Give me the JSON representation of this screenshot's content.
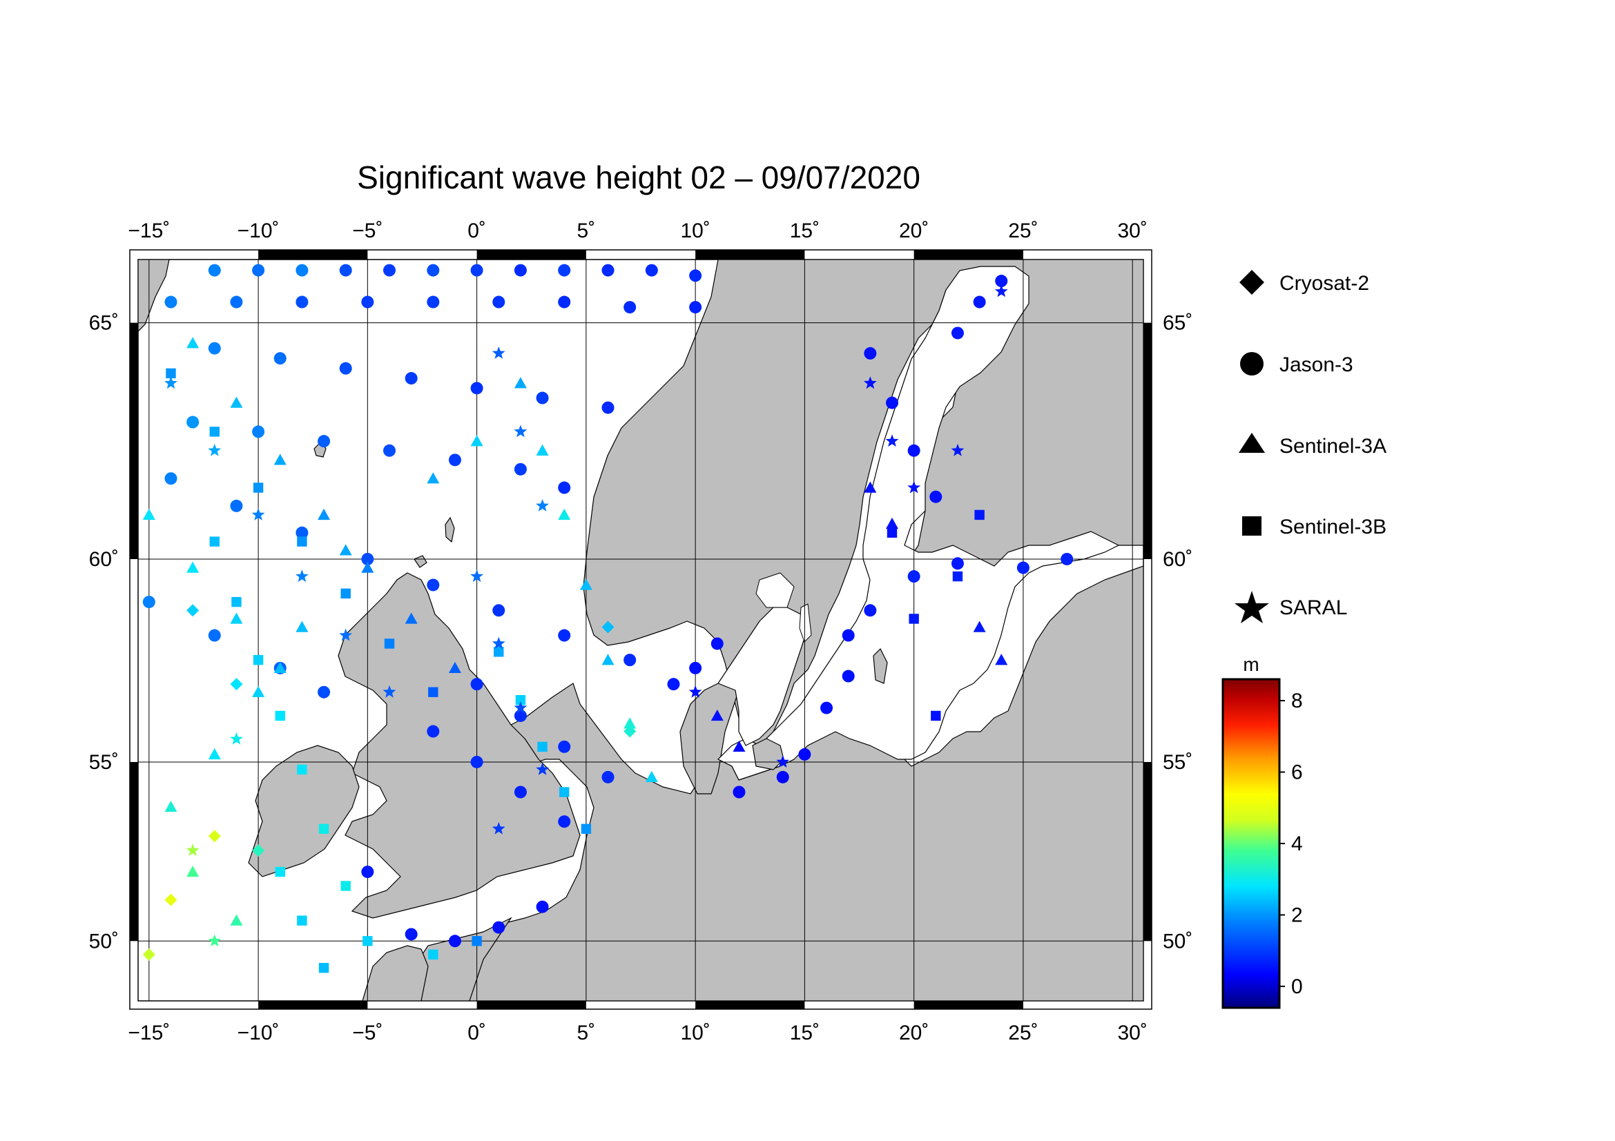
{
  "title": "Significant wave height 02 – 09/07/2020",
  "map": {
    "lon_range": [
      -15.5,
      30.5
    ],
    "lat_range": [
      48.2,
      66.2
    ],
    "lon_ticks": [
      -15,
      -10,
      -5,
      0,
      5,
      10,
      15,
      20,
      25,
      30
    ],
    "lon_tick_labels": [
      "−15˚",
      "−10˚",
      "−5˚",
      "0˚",
      "5˚",
      "10˚",
      "15˚",
      "20˚",
      "25˚",
      "30˚"
    ],
    "lat_ticks": [
      50,
      55,
      60,
      65
    ],
    "lat_tick_labels": [
      "50˚",
      "55˚",
      "60˚",
      "65˚"
    ],
    "land_color": "#bebebe",
    "sea_color": "#ffffff"
  },
  "legend": {
    "items": [
      {
        "label": "Cryosat-2",
        "marker": "diamond-icon"
      },
      {
        "label": "Jason-3",
        "marker": "circle-icon"
      },
      {
        "label": "Sentinel-3A",
        "marker": "triangle-icon"
      },
      {
        "label": "Sentinel-3B",
        "marker": "square-icon"
      },
      {
        "label": "SARAL",
        "marker": "star-icon"
      }
    ]
  },
  "colorbar": {
    "unit": "m",
    "min": -0.6,
    "max": 8.6,
    "ticks": [
      0,
      2,
      4,
      6,
      8
    ],
    "tick_labels": [
      "0",
      "2",
      "4",
      "6",
      "8"
    ],
    "colors": [
      "#00007a",
      "#0000ff",
      "#0080ff",
      "#00e5ff",
      "#40ff90",
      "#d0ff20",
      "#ffff00",
      "#ff9a00",
      "#ff2000",
      "#c00000",
      "#800000"
    ]
  },
  "chart_data": {
    "type": "scatter",
    "description_value": "significant wave height along satellite ground tracks (m)",
    "series": [
      {
        "name": "Jason-3",
        "marker": "circle",
        "points": [
          [
            -12,
            66.0,
            1.8
          ],
          [
            -10,
            66.0,
            1.6
          ],
          [
            -8,
            66.0,
            1.8
          ],
          [
            -6,
            66.0,
            1.2
          ],
          [
            -4,
            66.0,
            1.0
          ],
          [
            -2,
            66.0,
            1.2
          ],
          [
            0,
            66.0,
            1.0
          ],
          [
            2,
            66.0,
            0.8
          ],
          [
            4,
            66.0,
            1.0
          ],
          [
            6,
            66.0,
            0.8
          ],
          [
            8,
            66.0,
            0.8
          ],
          [
            10,
            65.9,
            0.8
          ],
          [
            -14,
            65.4,
            1.8
          ],
          [
            -11,
            65.4,
            1.6
          ],
          [
            -8,
            65.4,
            1.2
          ],
          [
            -5,
            65.4,
            1.0
          ],
          [
            -2,
            65.4,
            1.0
          ],
          [
            1,
            65.4,
            0.9
          ],
          [
            4,
            65.4,
            0.8
          ],
          [
            7,
            65.3,
            0.8
          ],
          [
            10,
            65.3,
            0.7
          ],
          [
            -12,
            64.5,
            1.8
          ],
          [
            -9,
            64.3,
            1.6
          ],
          [
            -6,
            64.1,
            1.2
          ],
          [
            -3,
            63.9,
            1.0
          ],
          [
            0,
            63.7,
            0.9
          ],
          [
            3,
            63.5,
            1.0
          ],
          [
            6,
            63.3,
            0.8
          ],
          [
            -13,
            63.0,
            2.0
          ],
          [
            -10,
            62.8,
            1.8
          ],
          [
            -7,
            62.6,
            1.4
          ],
          [
            -4,
            62.4,
            1.2
          ],
          [
            -1,
            62.2,
            1.0
          ],
          [
            2,
            62.0,
            1.0
          ],
          [
            4,
            61.6,
            0.8
          ],
          [
            -14,
            61.8,
            1.8
          ],
          [
            -11,
            61.2,
            1.6
          ],
          [
            -8,
            60.6,
            1.4
          ],
          [
            -5,
            60.0,
            1.2
          ],
          [
            -2,
            59.4,
            1.0
          ],
          [
            1,
            58.8,
            0.9
          ],
          [
            4,
            58.2,
            0.8
          ],
          [
            7,
            57.6,
            0.8
          ],
          [
            9,
            57.0,
            0.6
          ],
          [
            -15,
            59.0,
            1.8
          ],
          [
            -12,
            58.2,
            1.6
          ],
          [
            -9,
            57.4,
            1.4
          ],
          [
            -7,
            56.8,
            1.2
          ],
          [
            0,
            57.0,
            0.8
          ],
          [
            2,
            56.2,
            0.8
          ],
          [
            4,
            55.4,
            0.8
          ],
          [
            6,
            54.6,
            0.8
          ],
          [
            -2,
            55.8,
            0.8
          ],
          [
            0,
            55.0,
            0.8
          ],
          [
            2,
            54.2,
            0.7
          ],
          [
            4,
            53.4,
            0.7
          ],
          [
            18,
            64.4,
            0.5
          ],
          [
            19,
            63.4,
            0.5
          ],
          [
            20,
            62.4,
            0.5
          ],
          [
            21,
            61.4,
            0.5
          ],
          [
            22,
            64.8,
            0.6
          ],
          [
            23,
            65.4,
            0.6
          ],
          [
            24,
            65.8,
            0.6
          ],
          [
            17,
            58.2,
            0.5
          ],
          [
            18,
            58.8,
            0.6
          ],
          [
            20,
            59.6,
            0.7
          ],
          [
            22,
            59.9,
            0.6
          ],
          [
            25,
            59.8,
            0.7
          ],
          [
            27,
            60.0,
            0.7
          ],
          [
            16,
            56.4,
            0.5
          ],
          [
            17,
            57.2,
            0.5
          ],
          [
            15,
            55.2,
            0.4
          ],
          [
            14,
            54.6,
            0.4
          ],
          [
            12,
            54.2,
            0.4
          ],
          [
            10,
            57.4,
            0.5
          ],
          [
            11,
            58.0,
            0.5
          ],
          [
            -3,
            50.2,
            0.6
          ],
          [
            -1,
            50.0,
            0.5
          ],
          [
            1,
            50.4,
            0.5
          ],
          [
            3,
            51.0,
            0.5
          ],
          [
            -5,
            52.0,
            0.6
          ]
        ]
      },
      {
        "name": "Sentinel-3A",
        "marker": "triangle",
        "points": [
          [
            -13,
            64.6,
            2.6
          ],
          [
            -11,
            63.4,
            2.4
          ],
          [
            -9,
            62.2,
            2.2
          ],
          [
            -7,
            61.0,
            2.0
          ],
          [
            -5,
            59.8,
            1.8
          ],
          [
            -3,
            58.6,
            1.6
          ],
          [
            -1,
            57.4,
            1.4
          ],
          [
            -15,
            61.0,
            2.8
          ],
          [
            -13,
            59.8,
            2.8
          ],
          [
            -11,
            58.6,
            2.6
          ],
          [
            -9,
            57.4,
            2.4
          ],
          [
            -12,
            55.2,
            2.8
          ],
          [
            -14,
            53.8,
            3.2
          ],
          [
            -13,
            52.0,
            3.8
          ],
          [
            -11,
            50.6,
            3.6
          ],
          [
            2,
            63.8,
            2.2
          ],
          [
            3,
            62.4,
            2.6
          ],
          [
            4,
            61.0,
            3.0
          ],
          [
            5,
            59.4,
            2.4
          ],
          [
            6,
            57.6,
            2.4
          ],
          [
            7,
            56.0,
            3.2
          ],
          [
            8,
            54.6,
            2.6
          ],
          [
            18,
            61.6,
            0.5
          ],
          [
            19,
            60.8,
            0.5
          ],
          [
            23,
            58.4,
            0.6
          ],
          [
            24,
            57.6,
            0.6
          ],
          [
            11,
            56.2,
            0.5
          ],
          [
            12,
            55.4,
            0.4
          ],
          [
            0,
            62.6,
            2.6
          ],
          [
            -2,
            61.8,
            2.2
          ],
          [
            -6,
            60.2,
            2.2
          ],
          [
            -8,
            58.4,
            2.4
          ],
          [
            -10,
            56.8,
            2.6
          ]
        ]
      },
      {
        "name": "Sentinel-3B",
        "marker": "square",
        "points": [
          [
            -14,
            64.0,
            2.0
          ],
          [
            -12,
            62.8,
            2.2
          ],
          [
            -10,
            61.6,
            2.0
          ],
          [
            -8,
            60.4,
            2.0
          ],
          [
            -6,
            59.2,
            2.0
          ],
          [
            -4,
            58.0,
            1.8
          ],
          [
            -2,
            56.8,
            1.4
          ],
          [
            -12,
            60.4,
            2.4
          ],
          [
            -11,
            59.0,
            2.4
          ],
          [
            -10,
            57.6,
            2.6
          ],
          [
            -9,
            56.2,
            2.8
          ],
          [
            -8,
            54.8,
            2.8
          ],
          [
            -7,
            53.2,
            3.0
          ],
          [
            -6,
            51.6,
            3.0
          ],
          [
            -5,
            50.0,
            2.6
          ],
          [
            -9,
            52.0,
            2.8
          ],
          [
            -8,
            50.6,
            2.6
          ],
          [
            -7,
            49.2,
            2.4
          ],
          [
            1,
            57.8,
            2.2
          ],
          [
            2,
            56.6,
            2.6
          ],
          [
            3,
            55.4,
            2.4
          ],
          [
            4,
            54.2,
            2.4
          ],
          [
            5,
            53.2,
            2.0
          ],
          [
            19,
            60.6,
            0.5
          ],
          [
            20,
            58.6,
            0.6
          ],
          [
            21,
            56.2,
            0.5
          ],
          [
            22,
            59.6,
            0.7
          ],
          [
            23,
            61.0,
            0.6
          ],
          [
            -2,
            49.6,
            2.6
          ],
          [
            0,
            50.0,
            1.8
          ]
        ]
      },
      {
        "name": "SARAL",
        "marker": "star",
        "points": [
          [
            -14,
            63.8,
            2.0
          ],
          [
            -12,
            62.4,
            2.2
          ],
          [
            -10,
            61.0,
            1.8
          ],
          [
            -8,
            59.6,
            1.8
          ],
          [
            -6,
            58.2,
            1.6
          ],
          [
            -4,
            56.8,
            1.4
          ],
          [
            1,
            64.4,
            1.4
          ],
          [
            2,
            62.8,
            1.6
          ],
          [
            3,
            61.2,
            1.8
          ],
          [
            0,
            59.6,
            1.6
          ],
          [
            1,
            58.0,
            1.4
          ],
          [
            2,
            56.4,
            1.2
          ],
          [
            3,
            54.8,
            1.0
          ],
          [
            1,
            53.2,
            1.0
          ],
          [
            18,
            63.8,
            0.5
          ],
          [
            19,
            62.6,
            0.6
          ],
          [
            20,
            61.6,
            0.5
          ],
          [
            22,
            62.4,
            0.6
          ],
          [
            24,
            65.6,
            0.6
          ],
          [
            -11,
            55.6,
            3.0
          ],
          [
            -13,
            52.6,
            4.4
          ],
          [
            -12,
            50.0,
            3.8
          ],
          [
            14,
            55.0,
            0.5
          ],
          [
            10,
            56.8,
            0.5
          ]
        ]
      },
      {
        "name": "Cryosat-2",
        "marker": "diamond",
        "points": [
          [
            -13,
            58.8,
            2.6
          ],
          [
            -11,
            57.0,
            2.8
          ],
          [
            -12,
            53.0,
            4.8
          ],
          [
            -14,
            51.2,
            5.0
          ],
          [
            -15,
            49.6,
            4.6
          ],
          [
            -10,
            52.6,
            3.4
          ],
          [
            6,
            58.4,
            2.4
          ],
          [
            7,
            55.8,
            3.2
          ]
        ]
      }
    ]
  }
}
